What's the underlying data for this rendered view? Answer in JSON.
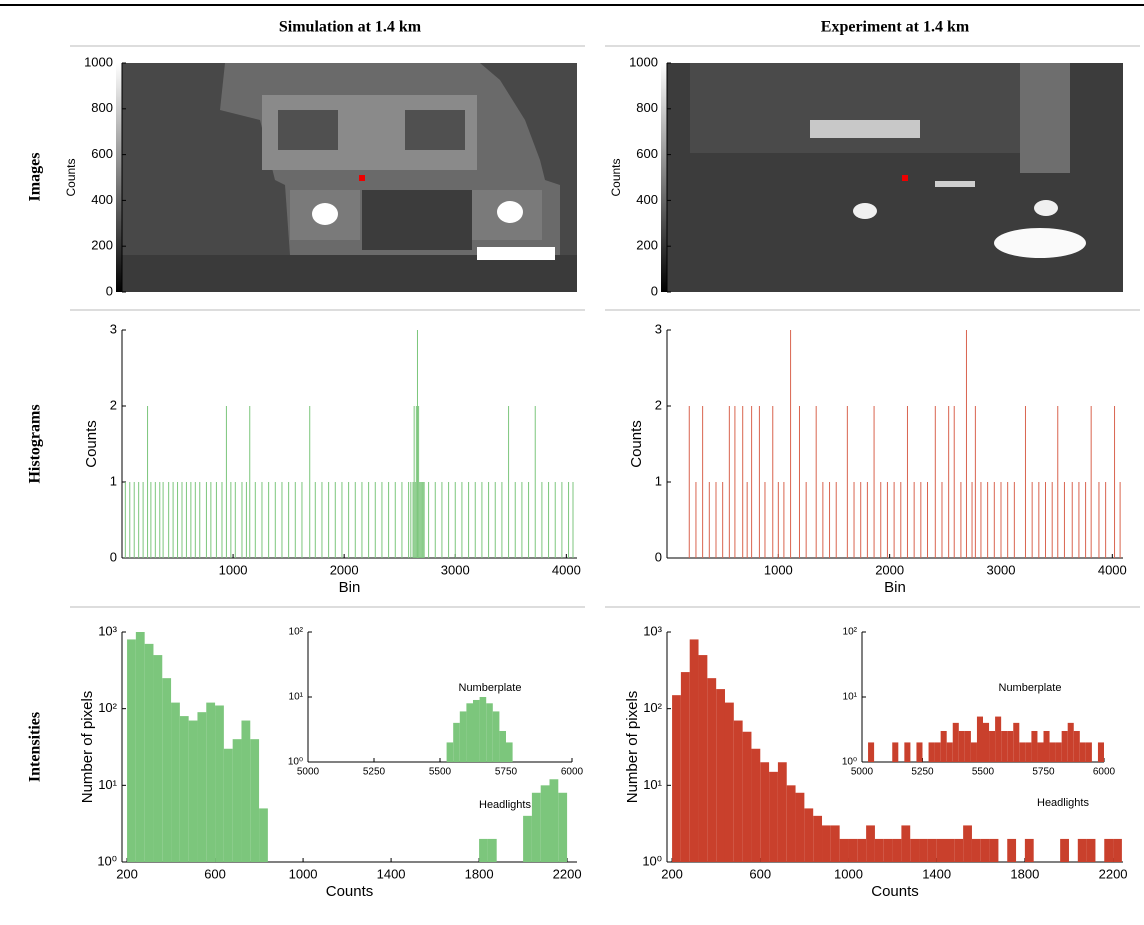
{
  "header": {
    "column_titles": [
      "Simulation at 1.4 km",
      "Experiment at 1.4 km"
    ],
    "row_labels": [
      "Images",
      "Histograms",
      "Intensities"
    ]
  },
  "chart_data": [
    {
      "type": "image",
      "ylabel": "Counts",
      "ylim": [
        0,
        1000
      ],
      "yticks": [
        0,
        200,
        400,
        600,
        800,
        1000
      ]
    },
    {
      "type": "image",
      "ylabel": "Counts",
      "ylim": [
        0,
        1000
      ],
      "yticks": [
        0,
        200,
        400,
        600,
        800,
        1000
      ]
    },
    {
      "type": "bar",
      "xlabel": "Bin",
      "ylabel": "Counts",
      "color": "#7cc67c",
      "xlim": [
        0,
        4096
      ],
      "ylim": [
        0,
        3
      ],
      "xticks": [
        1000,
        2000,
        3000,
        4000
      ],
      "yticks": [
        0,
        1,
        2,
        3
      ],
      "x": [
        30,
        70,
        110,
        150,
        190,
        230,
        260,
        300,
        340,
        370,
        420,
        460,
        500,
        540,
        580,
        620,
        660,
        700,
        760,
        800,
        850,
        900,
        940,
        980,
        1020,
        1080,
        1120,
        1150,
        1200,
        1260,
        1320,
        1380,
        1440,
        1500,
        1560,
        1620,
        1690,
        1740,
        1800,
        1860,
        1920,
        1980,
        2040,
        2100,
        2160,
        2220,
        2280,
        2340,
        2400,
        2460,
        2520,
        2580,
        2600,
        2620,
        2630,
        2640,
        2650,
        2660,
        2670,
        2680,
        2690,
        2700,
        2710,
        2720,
        2760,
        2820,
        2880,
        2940,
        3000,
        3060,
        3120,
        3180,
        3240,
        3300,
        3360,
        3420,
        3480,
        3540,
        3600,
        3660,
        3720,
        3780,
        3840,
        3900,
        3960,
        4020,
        4060
      ],
      "values": [
        1,
        1,
        1,
        1,
        1,
        2,
        1,
        1,
        1,
        1,
        1,
        1,
        1,
        1,
        1,
        1,
        1,
        1,
        1,
        1,
        1,
        1,
        2,
        1,
        1,
        1,
        1,
        2,
        1,
        1,
        1,
        1,
        1,
        1,
        1,
        1,
        2,
        1,
        1,
        1,
        1,
        1,
        1,
        1,
        1,
        1,
        1,
        1,
        1,
        1,
        1,
        1,
        1,
        1,
        2,
        1,
        2,
        3,
        2,
        1,
        1,
        1,
        1,
        1,
        1,
        1,
        1,
        1,
        1,
        1,
        1,
        1,
        1,
        1,
        1,
        1,
        2,
        1,
        1,
        1,
        2,
        1,
        1,
        1,
        1,
        1,
        1
      ]
    },
    {
      "type": "bar",
      "xlabel": "Bin",
      "ylabel": "Counts",
      "color": "#d9644f",
      "xlim": [
        0,
        4096
      ],
      "ylim": [
        0,
        3
      ],
      "xticks": [
        1000,
        2000,
        3000,
        4000
      ],
      "yticks": [
        0,
        1,
        2,
        3
      ],
      "x": [
        200,
        260,
        320,
        380,
        440,
        500,
        560,
        610,
        680,
        720,
        760,
        830,
        880,
        950,
        1000,
        1050,
        1110,
        1190,
        1250,
        1340,
        1400,
        1460,
        1520,
        1620,
        1680,
        1740,
        1800,
        1860,
        1920,
        1980,
        2040,
        2100,
        2160,
        2220,
        2280,
        2340,
        2410,
        2470,
        2530,
        2580,
        2640,
        2690,
        2740,
        2770,
        2820,
        2880,
        2940,
        3000,
        3060,
        3120,
        3220,
        3280,
        3340,
        3400,
        3460,
        3510,
        3570,
        3640,
        3700,
        3760,
        3810,
        3880,
        3940,
        4020,
        4070
      ],
      "values": [
        2,
        1,
        2,
        1,
        1,
        1,
        2,
        2,
        2,
        1,
        2,
        2,
        1,
        2,
        1,
        1,
        3,
        2,
        1,
        2,
        1,
        1,
        1,
        2,
        1,
        1,
        1,
        2,
        1,
        1,
        1,
        1,
        2,
        1,
        1,
        1,
        2,
        1,
        2,
        2,
        1,
        3,
        1,
        2,
        1,
        1,
        1,
        1,
        1,
        1,
        2,
        1,
        1,
        1,
        1,
        2,
        1,
        1,
        1,
        1,
        2,
        1,
        1,
        2,
        1
      ]
    },
    {
      "type": "histogram",
      "xlabel": "Counts",
      "ylabel": "Number of pixels",
      "color": "#7cc67c",
      "log_scale": true,
      "xlim": [
        177,
        2245
      ],
      "ylim": [
        1,
        1000
      ],
      "xticks": [
        200,
        600,
        1000,
        1400,
        1800,
        2200
      ],
      "yticks": [
        {
          "value": 1,
          "label": "10⁰"
        },
        {
          "value": 10,
          "label": "10¹"
        },
        {
          "value": 100,
          "label": "10²"
        },
        {
          "value": 1000,
          "label": "10³"
        }
      ],
      "annotations": [
        "Headlights"
      ],
      "bins": [
        200,
        240,
        280,
        320,
        360,
        400,
        440,
        480,
        520,
        560,
        600,
        640,
        680,
        720,
        760,
        800,
        840,
        880,
        920,
        960,
        1000,
        1040,
        1080,
        1120,
        1160,
        1200,
        1240,
        1280,
        1320,
        1360,
        1400,
        1440,
        1480,
        1520,
        1560,
        1600,
        1640,
        1680,
        1720,
        1760,
        1800,
        1840,
        1880,
        1920,
        1960,
        2000,
        2040,
        2080,
        2120,
        2160,
        2200,
        2240
      ],
      "values": [
        800,
        1000,
        700,
        500,
        250,
        120,
        80,
        70,
        90,
        120,
        110,
        30,
        40,
        70,
        40,
        5,
        1,
        1,
        1,
        1,
        1,
        1,
        1,
        1,
        1,
        1,
        1,
        1,
        1,
        1,
        1,
        1,
        1,
        1,
        1,
        1,
        1,
        1,
        1,
        1,
        2,
        2,
        1,
        1,
        1,
        4,
        8,
        10,
        12,
        8,
        1
      ]
    },
    {
      "type": "histogram",
      "color": "#7cc67c",
      "log_scale": true,
      "xlim": [
        5000,
        6000
      ],
      "ylim": [
        1,
        100
      ],
      "xticks": [
        5000,
        5250,
        5500,
        5750,
        6000
      ],
      "yticks": [
        {
          "value": 1,
          "label": "10⁰"
        },
        {
          "value": 10,
          "label": "10¹"
        },
        {
          "value": 100,
          "label": "10²"
        }
      ],
      "annotations": [
        "Numberplate"
      ],
      "bins": [
        5000,
        5025,
        5050,
        5075,
        5100,
        5125,
        5150,
        5175,
        5200,
        5225,
        5250,
        5275,
        5300,
        5325,
        5350,
        5375,
        5400,
        5425,
        5450,
        5475,
        5500,
        5525,
        5550,
        5575,
        5600,
        5625,
        5650,
        5675,
        5700,
        5725,
        5750,
        5775,
        5800,
        5825,
        5850,
        5875,
        5900,
        5925,
        5950,
        5975,
        6000
      ],
      "values": [
        1,
        1,
        1,
        1,
        1,
        1,
        1,
        1,
        1,
        1,
        1,
        1,
        1,
        1,
        1,
        1,
        1,
        1,
        1,
        1,
        1,
        2,
        4,
        6,
        8,
        9,
        10,
        8,
        6,
        3,
        2,
        1,
        1,
        1,
        1,
        1,
        1,
        1,
        1,
        1
      ]
    },
    {
      "type": "histogram",
      "xlabel": "Counts",
      "ylabel": "Number of pixels",
      "color": "#c9402c",
      "log_scale": true,
      "xlim": [
        177,
        2245
      ],
      "ylim": [
        1,
        1000
      ],
      "xticks": [
        200,
        600,
        1000,
        1400,
        1800,
        2200
      ],
      "yticks": [
        {
          "value": 1,
          "label": "10⁰"
        },
        {
          "value": 10,
          "label": "10¹"
        },
        {
          "value": 100,
          "label": "10²"
        },
        {
          "value": 1000,
          "label": "10³"
        }
      ],
      "annotations": [
        "Headlights"
      ],
      "bins": [
        200,
        240,
        280,
        320,
        360,
        400,
        440,
        480,
        520,
        560,
        600,
        640,
        680,
        720,
        760,
        800,
        840,
        880,
        920,
        960,
        1000,
        1040,
        1080,
        1120,
        1160,
        1200,
        1240,
        1280,
        1320,
        1360,
        1400,
        1440,
        1480,
        1520,
        1560,
        1600,
        1640,
        1680,
        1720,
        1760,
        1800,
        1840,
        1880,
        1920,
        1960,
        2000,
        2040,
        2080,
        2120,
        2160,
        2200,
        2240
      ],
      "values": [
        150,
        300,
        800,
        500,
        250,
        180,
        120,
        70,
        50,
        30,
        20,
        15,
        20,
        10,
        8,
        5,
        4,
        3,
        3,
        2,
        2,
        2,
        3,
        2,
        2,
        2,
        3,
        2,
        2,
        2,
        2,
        2,
        2,
        3,
        2,
        2,
        2,
        1,
        2,
        1,
        2,
        1,
        1,
        1,
        2,
        1,
        2,
        2,
        1,
        2,
        2
      ]
    },
    {
      "type": "histogram",
      "color": "#c9402c",
      "log_scale": true,
      "xlim": [
        5000,
        6000
      ],
      "ylim": [
        1,
        100
      ],
      "xticks": [
        5000,
        5250,
        5500,
        5750,
        6000
      ],
      "yticks": [
        {
          "value": 1,
          "label": "10⁰"
        },
        {
          "value": 10,
          "label": "10¹"
        },
        {
          "value": 100,
          "label": "10²"
        }
      ],
      "annotations": [
        "Numberplate"
      ],
      "bins": [
        5000,
        5025,
        5050,
        5075,
        5100,
        5125,
        5150,
        5175,
        5200,
        5225,
        5250,
        5275,
        5300,
        5325,
        5350,
        5375,
        5400,
        5425,
        5450,
        5475,
        5500,
        5525,
        5550,
        5575,
        5600,
        5625,
        5650,
        5675,
        5700,
        5725,
        5750,
        5775,
        5800,
        5825,
        5850,
        5875,
        5900,
        5925,
        5950,
        5975,
        6000
      ],
      "values": [
        1,
        2,
        1,
        1,
        1,
        2,
        1,
        2,
        1,
        2,
        1,
        2,
        2,
        3,
        2,
        4,
        3,
        3,
        2,
        5,
        4,
        3,
        5,
        3,
        3,
        4,
        2,
        2,
        3,
        2,
        3,
        2,
        2,
        3,
        4,
        3,
        2,
        2,
        1,
        2
      ]
    }
  ]
}
